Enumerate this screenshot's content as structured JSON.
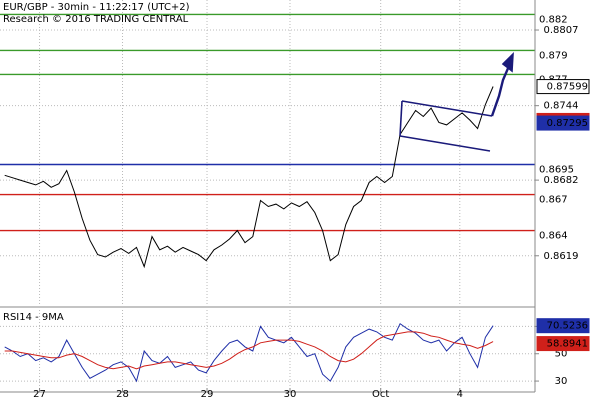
{
  "header": {
    "title": "EUR/GBP - 30min - 11:22:17 (UTC+2)",
    "credit": "Research © 2016 TRADING CENTRAL"
  },
  "chart_data": [
    {
      "type": "line",
      "color": "#000000",
      "values": [
        0.8686,
        0.8684,
        0.8682,
        0.868,
        0.8678,
        0.8681,
        0.8676,
        0.8679,
        0.869,
        0.8672,
        0.865,
        0.8632,
        0.862,
        0.8618,
        0.8622,
        0.8625,
        0.8621,
        0.8626,
        0.861,
        0.8635,
        0.8624,
        0.8627,
        0.8622,
        0.8626,
        0.8623,
        0.862,
        0.8615,
        0.8624,
        0.8628,
        0.8633,
        0.864,
        0.863,
        0.8635,
        0.8665,
        0.866,
        0.8662,
        0.8658,
        0.8663,
        0.866,
        0.8664,
        0.8655,
        0.864,
        0.8615,
        0.862,
        0.8645,
        0.866,
        0.8665,
        0.868,
        0.8685,
        0.868,
        0.8685,
        0.872,
        0.873,
        0.874,
        0.8735,
        0.8742,
        0.873,
        0.8728,
        0.8733,
        0.8738,
        0.8732,
        0.8725,
        0.8745,
        0.876
      ],
      "xlim": [
        -0.6,
        68.4
      ],
      "ylim": [
        0.8578,
        0.8832
      ],
      "yticks": [
        0.8619,
        0.8682,
        0.8744,
        0.8807
      ],
      "xticks": [
        {
          "value": 4.5,
          "label": "27"
        },
        {
          "value": 15.2,
          "label": "28"
        },
        {
          "value": 26.1,
          "label": "29"
        },
        {
          "value": 36.8,
          "label": "30"
        },
        {
          "value": 48.5,
          "label": "Oct"
        },
        {
          "value": 58.7,
          "label": "4"
        }
      ],
      "grid": true,
      "levels": [
        {
          "value": 0.882,
          "color": "#3a9a2a"
        },
        {
          "value": 0.879,
          "color": "#3a9a2a"
        },
        {
          "value": 0.877,
          "color": "#3a9a2a"
        },
        {
          "value": 0.8695,
          "color": "#1f2fa8"
        },
        {
          "value": 0.867,
          "color": "#d0201a"
        },
        {
          "value": 0.864,
          "color": "#d0201a"
        }
      ],
      "price_labels": [
        {
          "value": 0.87599,
          "color": "#000000"
        },
        {
          "value": 0.87317,
          "color": "#d0201a"
        },
        {
          "value": 0.87295,
          "color": "#1f2fa8"
        }
      ]
    },
    {
      "type": "line",
      "title": "RSI14 - 9MA",
      "series": [
        {
          "color": "#1f2fa8",
          "values": [
            55,
            52,
            48,
            50,
            45,
            47,
            44,
            48,
            60,
            50,
            40,
            32,
            35,
            38,
            42,
            44,
            40,
            30,
            52,
            45,
            43,
            48,
            40,
            42,
            44,
            38,
            36,
            45,
            52,
            58,
            60,
            55,
            52,
            70,
            62,
            60,
            58,
            62,
            55,
            48,
            50,
            35,
            30,
            40,
            55,
            62,
            65,
            68,
            66,
            62,
            60,
            72,
            68,
            65,
            60,
            58,
            60,
            52,
            58,
            62,
            50,
            40,
            62,
            70.5236
          ]
        },
        {
          "color": "#d0201a",
          "values": [
            52,
            52,
            51,
            50,
            49,
            48,
            47,
            47,
            49,
            50,
            48,
            45,
            42,
            40,
            39,
            40,
            41,
            39,
            41,
            42,
            43,
            44,
            44,
            43,
            42,
            41,
            40,
            41,
            43,
            46,
            50,
            53,
            55,
            58,
            59,
            60,
            60,
            60,
            59,
            57,
            55,
            52,
            48,
            45,
            44,
            46,
            50,
            55,
            60,
            63,
            64,
            65,
            66,
            66,
            65,
            63,
            62,
            60,
            58,
            57,
            56,
            54,
            56,
            58.8941
          ]
        }
      ],
      "xlim": [
        -0.6,
        68.4
      ],
      "ylim": [
        22,
        82
      ],
      "yticks": [
        30,
        50,
        70
      ],
      "grid": true
    }
  ]
}
